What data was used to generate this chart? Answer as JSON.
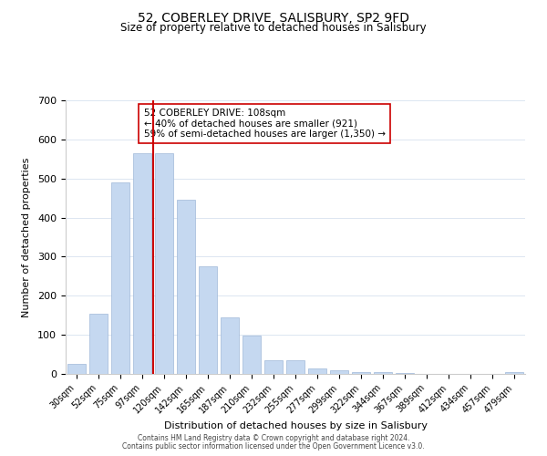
{
  "title": "52, COBERLEY DRIVE, SALISBURY, SP2 9FD",
  "subtitle": "Size of property relative to detached houses in Salisbury",
  "xlabel": "Distribution of detached houses by size in Salisbury",
  "ylabel": "Number of detached properties",
  "bar_labels": [
    "30sqm",
    "52sqm",
    "75sqm",
    "97sqm",
    "120sqm",
    "142sqm",
    "165sqm",
    "187sqm",
    "210sqm",
    "232sqm",
    "255sqm",
    "277sqm",
    "299sqm",
    "322sqm",
    "344sqm",
    "367sqm",
    "389sqm",
    "412sqm",
    "434sqm",
    "457sqm",
    "479sqm"
  ],
  "bar_values": [
    25,
    155,
    490,
    565,
    565,
    445,
    275,
    145,
    97,
    36,
    36,
    13,
    10,
    5,
    4,
    2,
    1,
    0,
    0,
    0,
    4
  ],
  "bar_color": "#c5d8f0",
  "bar_edge_color": "#a0b8d8",
  "vline_x": 3.5,
  "vline_color": "#cc0000",
  "annotation_text": "52 COBERLEY DRIVE: 108sqm\n← 40% of detached houses are smaller (921)\n59% of semi-detached houses are larger (1,350) →",
  "annotation_box_color": "#ffffff",
  "annotation_box_edge": "#cc0000",
  "ylim": [
    0,
    700
  ],
  "yticks": [
    0,
    100,
    200,
    300,
    400,
    500,
    600,
    700
  ],
  "footer_line1": "Contains HM Land Registry data © Crown copyright and database right 2024.",
  "footer_line2": "Contains public sector information licensed under the Open Government Licence v3.0.",
  "bg_color": "#ffffff",
  "grid_color": "#dce6f1"
}
